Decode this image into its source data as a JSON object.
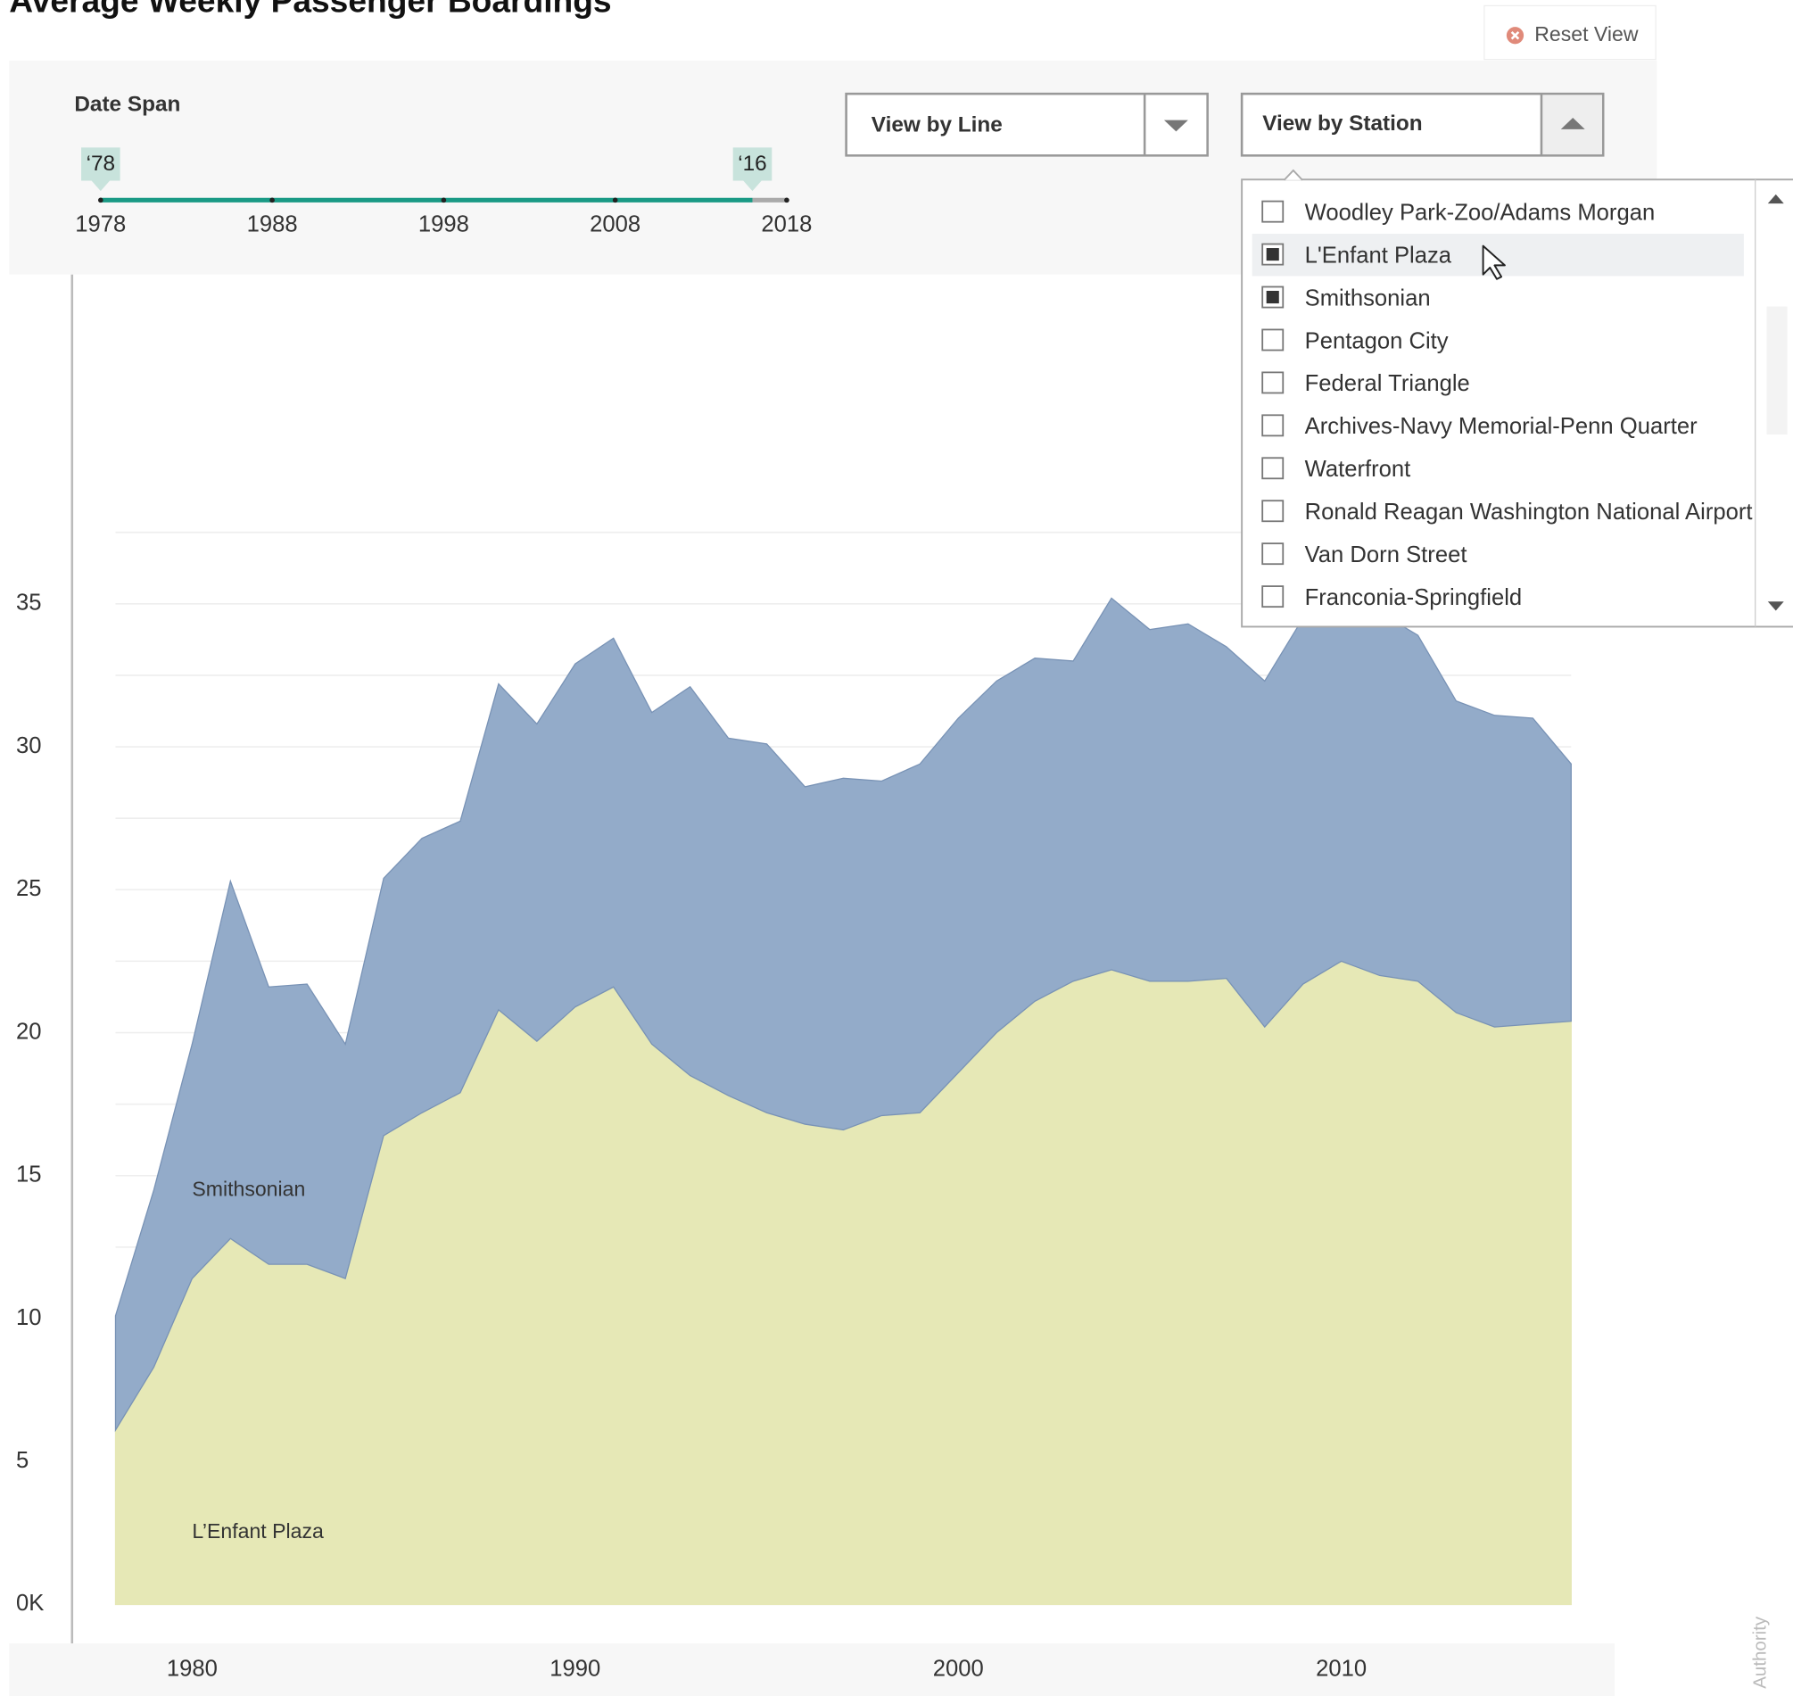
{
  "header": {
    "title": "Average Weekly Passenger Boardings",
    "reset_button": "Reset View"
  },
  "date_span": {
    "label": "Date Span",
    "axis_ticks": [
      1978,
      1988,
      1998,
      2008,
      2018
    ],
    "start": 1978,
    "end": 2016,
    "start_label": "‘78",
    "end_label": "‘16"
  },
  "view_by_line": {
    "label": "View by Line"
  },
  "view_by_station": {
    "label": "View by Station",
    "items": [
      {
        "name": "Woodley Park-Zoo/Adams Morgan",
        "checked": false
      },
      {
        "name": "L'Enfant Plaza",
        "checked": true
      },
      {
        "name": "Smithsonian",
        "checked": true
      },
      {
        "name": "Pentagon City",
        "checked": false
      },
      {
        "name": "Federal Triangle",
        "checked": false
      },
      {
        "name": "Archives-Navy Memorial-Penn Quarter",
        "checked": false
      },
      {
        "name": "Waterfront",
        "checked": false
      },
      {
        "name": "Ronald Reagan Washington National Airport",
        "checked": false
      },
      {
        "name": "Van Dorn Street",
        "checked": false
      },
      {
        "name": "Franconia-Springfield",
        "checked": false
      }
    ]
  },
  "chart_data": {
    "type": "stacked_area",
    "x": [
      1978,
      1979,
      1980,
      1981,
      1982,
      1983,
      1984,
      1985,
      1986,
      1987,
      1988,
      1989,
      1990,
      1991,
      1992,
      1993,
      1994,
      1995,
      1996,
      1997,
      1998,
      1999,
      2000,
      2001,
      2002,
      2003,
      2004,
      2005,
      2006,
      2007,
      2008,
      2009,
      2010,
      2011,
      2012,
      2013,
      2014,
      2015,
      2016
    ],
    "series": [
      {
        "name": "L’Enfant Plaza",
        "color": "#e6e8b6",
        "values": [
          6.1,
          8.3,
          11.4,
          12.8,
          11.9,
          11.9,
          11.4,
          16.4,
          17.2,
          17.9,
          20.8,
          19.7,
          20.9,
          21.6,
          19.6,
          18.5,
          17.8,
          17.2,
          16.8,
          16.6,
          17.1,
          17.2,
          18.6,
          20.0,
          21.1,
          21.8,
          22.2,
          21.8,
          21.8,
          21.9,
          20.2,
          21.7,
          22.5,
          22.0,
          21.8,
          20.7,
          20.2,
          20.3,
          20.4
        ]
      },
      {
        "name": "Smithsonian",
        "color": "#93abc9",
        "values": [
          4.0,
          6.2,
          8.2,
          12.5,
          9.7,
          9.8,
          8.2,
          9.0,
          9.6,
          9.5,
          11.4,
          11.1,
          12.0,
          12.2,
          11.6,
          13.6,
          12.5,
          12.9,
          11.8,
          12.3,
          11.7,
          12.2,
          12.4,
          12.3,
          12.0,
          11.2,
          13.0,
          12.3,
          12.5,
          11.6,
          12.1,
          12.8,
          13.0,
          12.7,
          12.1,
          10.9,
          10.9,
          10.7,
          9.0
        ]
      }
    ],
    "xlim": [
      1978,
      2016
    ],
    "xticks": [
      1980,
      1990,
      2000,
      2010
    ],
    "ylim": [
      0,
      40
    ],
    "yticks": [
      {
        "value": 0,
        "label": "0K"
      },
      5,
      10,
      15,
      20,
      25,
      30,
      35
    ],
    "grid_lines": [
      2.5,
      5,
      7.5,
      10,
      12.5,
      15,
      17.5,
      20,
      22.5,
      25,
      27.5,
      30,
      32.5,
      35,
      37.5
    ],
    "grid": true,
    "source_fragment": "Authority"
  }
}
